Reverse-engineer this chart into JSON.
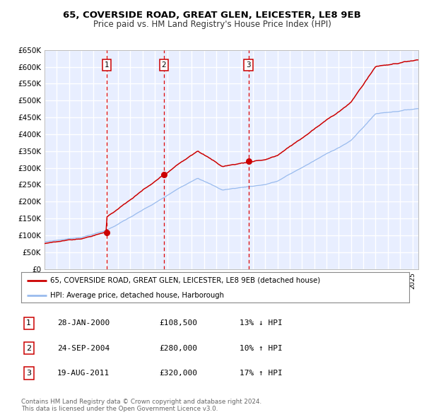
{
  "title1": "65, COVERSIDE ROAD, GREAT GLEN, LEICESTER, LE8 9EB",
  "title2": "Price paid vs. HM Land Registry's House Price Index (HPI)",
  "plot_bg_color": "#e8eeff",
  "grid_color": "#ffffff",
  "ylim": [
    0,
    650000
  ],
  "yticks": [
    0,
    50000,
    100000,
    150000,
    200000,
    250000,
    300000,
    350000,
    400000,
    450000,
    500000,
    550000,
    600000,
    650000
  ],
  "ytick_labels": [
    "£0",
    "£50K",
    "£100K",
    "£150K",
    "£200K",
    "£250K",
    "£300K",
    "£350K",
    "£400K",
    "£450K",
    "£500K",
    "£550K",
    "£600K",
    "£650K"
  ],
  "xmin": 1995.0,
  "xmax": 2025.5,
  "sale_color": "#cc0000",
  "hpi_color": "#99bbee",
  "marker_color": "#cc0000",
  "vline_color": "#dd0000",
  "sale_dates": [
    2000.07,
    2004.73,
    2011.63
  ],
  "sale_prices": [
    108500,
    280000,
    320000
  ],
  "sale_labels": [
    "1",
    "2",
    "3"
  ],
  "legend_label_sale": "65, COVERSIDE ROAD, GREAT GLEN, LEICESTER, LE8 9EB (detached house)",
  "legend_label_hpi": "HPI: Average price, detached house, Harborough",
  "table_rows": [
    {
      "num": "1",
      "date": "28-JAN-2000",
      "price": "£108,500",
      "change": "13% ↓ HPI"
    },
    {
      "num": "2",
      "date": "24-SEP-2004",
      "price": "£280,000",
      "change": "10% ↑ HPI"
    },
    {
      "num": "3",
      "date": "19-AUG-2011",
      "price": "£320,000",
      "change": "17% ↑ HPI"
    }
  ],
  "footer": "Contains HM Land Registry data © Crown copyright and database right 2024.\nThis data is licensed under the Open Government Licence v3.0."
}
